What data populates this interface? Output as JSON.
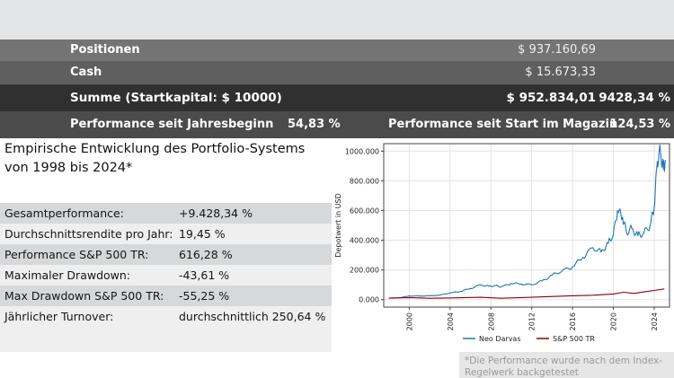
{
  "summary": {
    "positions_label": "Positionen",
    "positions_value": "$ 937.160,69",
    "cash_label": "Cash",
    "cash_value": "$ 15.673,33",
    "total_label": "Summe (Startkapital: $ 10000)",
    "total_value": "$ 952.834,01",
    "total_pct": "9428,34 %",
    "ytd_label": "Performance seit Jahresbeginn",
    "ytd_value": "54,83 %",
    "since_start_label": "Performance seit Start im Magazin",
    "since_start_value": "124,53 %"
  },
  "heading": {
    "line1": "Empirische Entwicklung des Portfolio-Systems",
    "line2": "von 1998 bis 2024*"
  },
  "stats": [
    {
      "label": "Gesamtperformance:",
      "value": "+9.428,34 %"
    },
    {
      "label": "Durchschnittsrendite pro Jahr:",
      "value": "19,45 %"
    },
    {
      "label": "Performance S&P 500 TR:",
      "value": "616,28 %"
    },
    {
      "label": "Maximaler Drawdown:",
      "value": "-43,61 %"
    },
    {
      "label": "Max Drawdown S&P 500 TR:",
      "value": "-55,25 %"
    },
    {
      "label": "Jährlicher Turnover:",
      "value": "durchschnittlich 250,64 %"
    }
  ],
  "footnote": "*Die Performance wurde nach dem Index-Regelwerk backgetestet",
  "colors": {
    "series1": "#1f77b4",
    "series2": "#8b0000"
  },
  "chart_data": {
    "type": "line",
    "title": "",
    "xlabel": "",
    "ylabel": "Depotwert in USD",
    "xlim": [
      1997.5,
      2025.5
    ],
    "ylim": [
      -50000,
      1050000
    ],
    "xticks": [
      2000,
      2004,
      2008,
      2012,
      2016,
      2020,
      2024
    ],
    "yticks": [
      0,
      200000,
      400000,
      600000,
      800000,
      1000000
    ],
    "ytick_labels": [
      "0.000",
      "200.000",
      "400.000",
      "600.000",
      "800.000",
      "1000.000"
    ],
    "grid": true,
    "legend": "bottom",
    "series": [
      {
        "name": "Neo Darvas",
        "x": [
          1998,
          1999,
          2000,
          2001,
          2002,
          2003,
          2004,
          2005,
          2006,
          2007,
          2007.8,
          2008.5,
          2009,
          2010,
          2011,
          2012,
          2013,
          2014,
          2015,
          2016,
          2017,
          2018,
          2018.8,
          2019.5,
          2020,
          2020.4,
          2020.9,
          2021.3,
          2021.8,
          2022.4,
          2023,
          2023.6,
          2024,
          2024.3,
          2024.6,
          2024.9,
          2025.1
        ],
        "y": [
          10000,
          12000,
          25000,
          24000,
          26000,
          30000,
          45000,
          55000,
          75000,
          100000,
          90000,
          95000,
          85000,
          110000,
          105000,
          100000,
          125000,
          165000,
          195000,
          220000,
          285000,
          350000,
          320000,
          380000,
          440000,
          600000,
          555000,
          450000,
          480000,
          430000,
          450000,
          500000,
          620000,
          930000,
          1000000,
          880000,
          940000
        ]
      },
      {
        "name": "S&P 500 TR",
        "x": [
          1998,
          2000,
          2002,
          2003,
          2007,
          2009,
          2012,
          2016,
          2018,
          2020,
          2021,
          2022,
          2023,
          2024,
          2025
        ],
        "y": [
          10000,
          14000,
          9000,
          10000,
          16000,
          9000,
          16000,
          26000,
          30000,
          38000,
          50000,
          42000,
          52000,
          62000,
          72000
        ]
      }
    ]
  }
}
